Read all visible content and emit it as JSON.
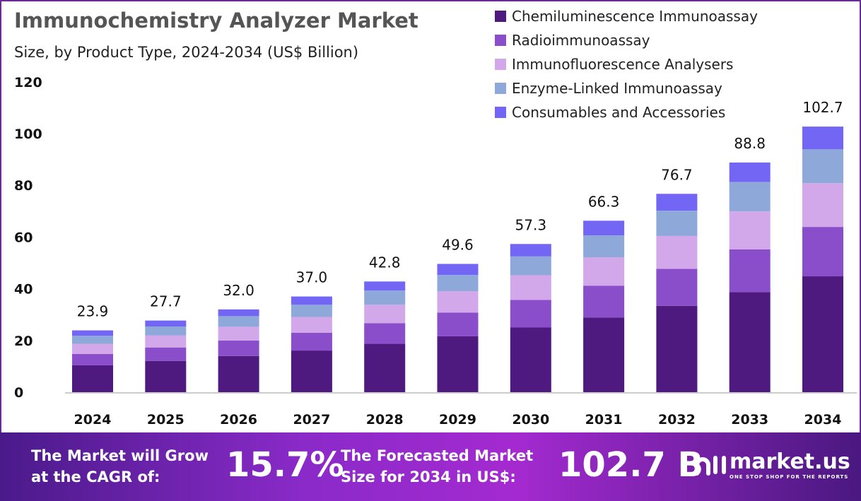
{
  "chart_data": {
    "type": "bar",
    "stacked": true,
    "title": "Immunochemistry Analyzer Market",
    "subtitle": "Size, by Product Type, 2024-2034 (US$ Billion)",
    "categories": [
      "2024",
      "2025",
      "2026",
      "2027",
      "2028",
      "2029",
      "2030",
      "2031",
      "2032",
      "2033",
      "2034"
    ],
    "totals": [
      "23.9",
      "27.7",
      "32.0",
      "37.0",
      "42.8",
      "49.6",
      "57.3",
      "66.3",
      "76.7",
      "88.8",
      "102.7"
    ],
    "series": [
      {
        "name": "Chemiluminescence Immunoassay",
        "color": "#4e1a80",
        "values": [
          10.4,
          12.1,
          14.0,
          16.1,
          18.7,
          21.6,
          25.0,
          28.9,
          33.4,
          38.7,
          44.8
        ]
      },
      {
        "name": "Radioimmunoassay",
        "color": "#8a4ecb",
        "values": [
          4.4,
          5.2,
          6.0,
          6.9,
          8.0,
          9.2,
          10.7,
          12.3,
          14.3,
          16.5,
          19.1
        ]
      },
      {
        "name": "Immunofluorescence Analysers",
        "color": "#d3a8ea",
        "values": [
          3.9,
          4.6,
          5.3,
          6.1,
          7.1,
          8.2,
          9.5,
          10.9,
          12.7,
          14.7,
          16.9
        ]
      },
      {
        "name": "Enzyme-Linked Immunoassay",
        "color": "#8fa8da",
        "values": [
          3.1,
          3.5,
          4.1,
          4.7,
          5.5,
          6.3,
          7.3,
          8.5,
          9.8,
          11.4,
          13.1
        ]
      },
      {
        "name": "Consumables and Accessories",
        "color": "#7366f5",
        "values": [
          2.1,
          2.3,
          2.6,
          3.2,
          3.5,
          4.3,
          4.8,
          5.7,
          6.5,
          7.5,
          8.8
        ]
      }
    ],
    "yticks": [
      "0",
      "20",
      "40",
      "60",
      "80",
      "100",
      "120"
    ],
    "ylim": [
      0,
      120
    ],
    "grid": false,
    "legend": "top-right"
  },
  "footer": {
    "cagr_label_1": "The Market will Grow",
    "cagr_label_2": "at the CAGR of:",
    "cagr_value": "15.7%",
    "forecast_label_1": "The Forecasted Market",
    "forecast_label_2": "Size for 2034 in US$:",
    "forecast_value": "102.7 B",
    "brand": "market.us",
    "tagline": "ONE STOP SHOP FOR THE REPORTS"
  }
}
